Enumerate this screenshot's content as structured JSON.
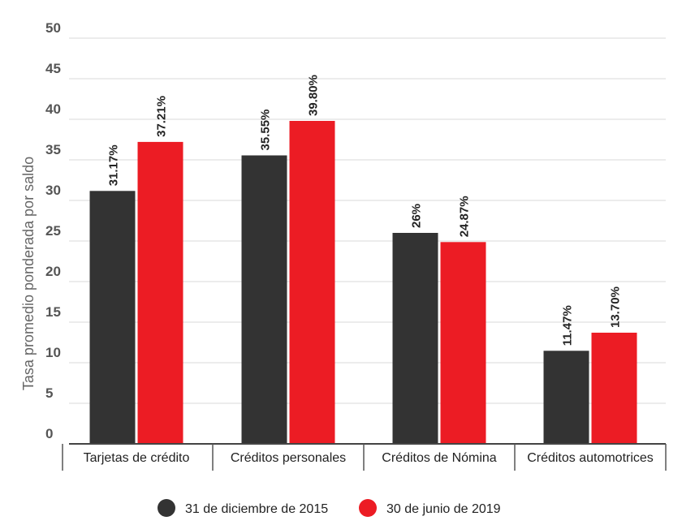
{
  "chart_data": {
    "type": "bar",
    "categories": [
      "Tarjetas de crédito",
      "Créditos personales",
      "Créditos de Nómina",
      "Créditos automotrices"
    ],
    "series": [
      {
        "name": "31 de diciembre de 2015",
        "values": [
          31.17,
          35.55,
          26,
          11.47
        ],
        "labels": [
          "31.17%",
          "35.55%",
          "26%",
          "11.47%"
        ],
        "color": "#333333"
      },
      {
        "name": "30 de junio de 2019",
        "values": [
          37.21,
          39.8,
          24.87,
          13.7
        ],
        "labels": [
          "37.21%",
          "39.80%",
          "24.87%",
          "13.70%"
        ],
        "color": "#ec1c24"
      }
    ],
    "xlabel": "",
    "ylabel": "Tasa promedio ponderada por saldo",
    "ylim": [
      0,
      50
    ],
    "yticks": [
      0,
      5,
      10,
      15,
      20,
      25,
      30,
      35,
      40,
      45,
      50
    ],
    "grid": true,
    "legend_position": "bottom"
  }
}
